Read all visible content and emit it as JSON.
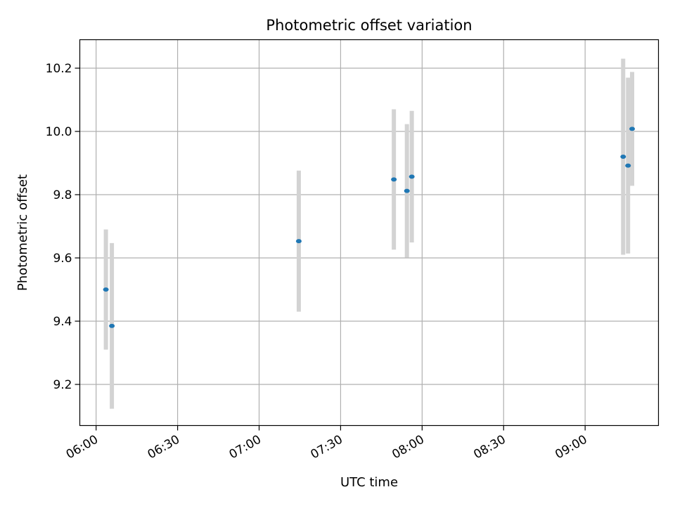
{
  "chart_data": {
    "type": "scatter",
    "title": "Photometric offset variation",
    "xlabel": "UTC time",
    "ylabel": "Photometric offset",
    "x_ticks": [
      "06:00",
      "06:30",
      "07:00",
      "07:30",
      "08:00",
      "08:30",
      "09:00"
    ],
    "y_ticks": [
      "9.2",
      "9.4",
      "9.6",
      "9.8",
      "10.0",
      "10.2"
    ],
    "xlim": [
      "05:54",
      "09:27"
    ],
    "ylim": [
      9.07,
      10.29
    ],
    "grid": true,
    "colors": {
      "marker": "#1f77b4",
      "errorbar": "#d3d3d3",
      "grid": "#b0b0b0"
    },
    "points": [
      {
        "x": "06:03.6",
        "y": 9.5,
        "err": 0.19
      },
      {
        "x": "06:05.8",
        "y": 9.385,
        "err": 0.262
      },
      {
        "x": "07:14.6",
        "y": 9.653,
        "err": 0.223
      },
      {
        "x": "07:49.6",
        "y": 9.848,
        "err": 0.222
      },
      {
        "x": "07:54.4",
        "y": 9.812,
        "err": 0.211
      },
      {
        "x": "07:56.2",
        "y": 9.857,
        "err": 0.208
      },
      {
        "x": "09:14.0",
        "y": 9.92,
        "err": 0.31
      },
      {
        "x": "09:15.8",
        "y": 9.892,
        "err": 0.278
      },
      {
        "x": "09:17.3",
        "y": 10.008,
        "err": 0.18
      }
    ]
  }
}
